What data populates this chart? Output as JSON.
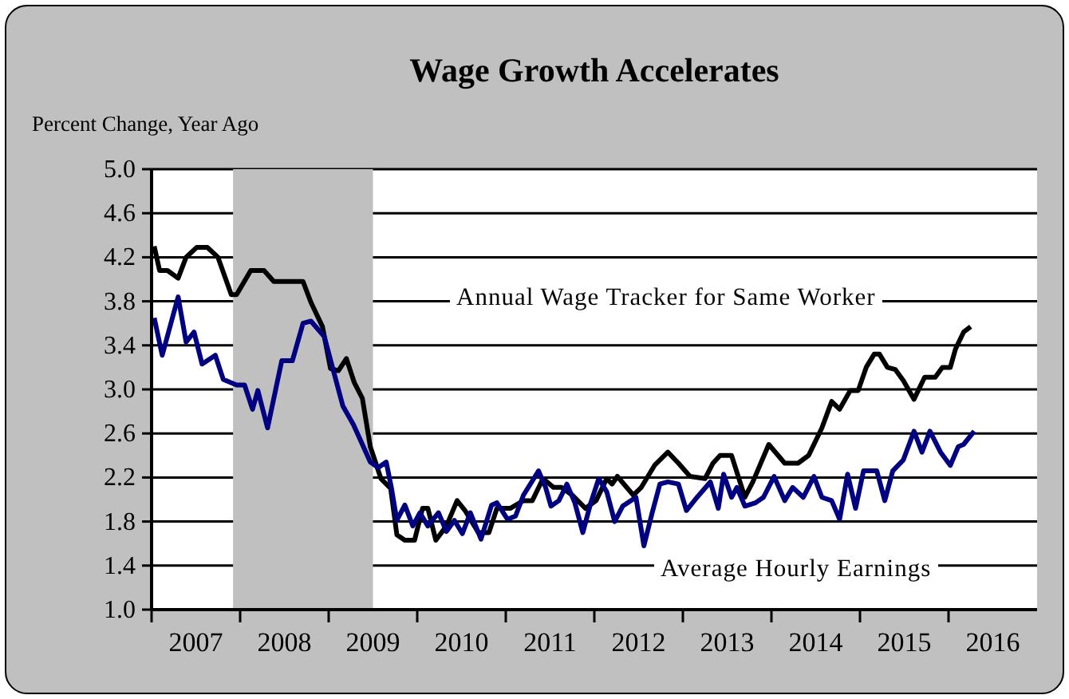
{
  "chart_data": {
    "type": "line",
    "title": "Wage Growth Accelerates",
    "ylabel": "Percent Change, Year Ago",
    "xlim": [
      2007,
      2017
    ],
    "xticks": [
      {
        "value": 2007,
        "label": null
      },
      {
        "value": 2008,
        "label": null
      },
      {
        "value": 2009,
        "label": null
      },
      {
        "value": 2010,
        "label": null
      },
      {
        "value": 2011,
        "label": null
      },
      {
        "value": 2012,
        "label": null
      },
      {
        "value": 2013,
        "label": null
      },
      {
        "value": 2014,
        "label": null
      },
      {
        "value": 2015,
        "label": null
      },
      {
        "value": 2016,
        "label": null
      },
      {
        "value": 2007.5,
        "label": "2007"
      },
      {
        "value": 2008.5,
        "label": "2008"
      },
      {
        "value": 2009.5,
        "label": "2009"
      },
      {
        "value": 2010.5,
        "label": "2010"
      },
      {
        "value": 2011.5,
        "label": "2011"
      },
      {
        "value": 2012.5,
        "label": "2012"
      },
      {
        "value": 2013.5,
        "label": "2013"
      },
      {
        "value": 2014.5,
        "label": "2014"
      },
      {
        "value": 2015.5,
        "label": "2015"
      },
      {
        "value": 2016.5,
        "label": "2016"
      }
    ],
    "ylim": [
      1,
      5
    ],
    "yticks": [
      {
        "value": 1,
        "label": "1.0"
      },
      {
        "value": 1.4,
        "label": "1.4"
      },
      {
        "value": 1.8,
        "label": "1.8"
      },
      {
        "value": 2.2,
        "label": "2.2"
      },
      {
        "value": 2.6,
        "label": "2.6"
      },
      {
        "value": 3,
        "label": "3.0"
      },
      {
        "value": 3.4,
        "label": "3.4"
      },
      {
        "value": 3.8,
        "label": "3.8"
      },
      {
        "value": 4.2,
        "label": "4.2"
      },
      {
        "value": 4.6,
        "label": "4.6"
      },
      {
        "value": 5,
        "label": "5.0"
      }
    ],
    "grid": "y",
    "marker": "none",
    "line_style": "solid",
    "bands": [
      {
        "axis": "x",
        "from": 2007.92,
        "to": 2009.5,
        "color": "#c0c0c0"
      }
    ],
    "series": [
      {
        "name": "Annual Wage Tracker for Same Worker",
        "color": "#000000",
        "x": [
          2007.03,
          2007.09,
          2007.18,
          2007.3,
          2007.39,
          2007.51,
          2007.63,
          2007.75,
          2007.9,
          2007.96,
          2008.12,
          2008.27,
          2008.38,
          2008.71,
          2008.8,
          2008.93,
          2009.02,
          2009.11,
          2009.2,
          2009.29,
          2009.38,
          2009.47,
          2009.59,
          2009.7,
          2009.77,
          2009.86,
          2009.97,
          2010.06,
          2010.12,
          2010.21,
          2010.33,
          2010.45,
          2010.54,
          2010.69,
          2010.81,
          2010.9,
          2011.05,
          2011.2,
          2011.3,
          2011.42,
          2011.54,
          2011.63,
          2011.75,
          2011.9,
          2012.02,
          2012.14,
          2012.2,
          2012.26,
          2012.44,
          2012.53,
          2012.68,
          2012.83,
          2012.95,
          2013.08,
          2013.25,
          2013.34,
          2013.42,
          2013.55,
          2013.7,
          2013.79,
          2013.97,
          2014.15,
          2014.3,
          2014.42,
          2014.57,
          2014.68,
          2014.77,
          2014.89,
          2014.98,
          2015.07,
          2015.16,
          2015.22,
          2015.31,
          2015.4,
          2015.49,
          2015.61,
          2015.73,
          2015.85,
          2015.93,
          2016.02,
          2016.08,
          2016.17,
          2016.25
        ],
        "values": [
          4.3,
          4.08,
          4.08,
          4.01,
          4.2,
          4.29,
          4.29,
          4.2,
          3.86,
          3.86,
          4.08,
          4.08,
          3.98,
          3.98,
          3.79,
          3.57,
          3.19,
          3.17,
          3.28,
          3.06,
          2.92,
          2.48,
          2.19,
          2.1,
          1.68,
          1.63,
          1.63,
          1.92,
          1.92,
          1.63,
          1.76,
          1.99,
          1.9,
          1.7,
          1.7,
          1.92,
          1.92,
          1.99,
          1.99,
          2.19,
          2.11,
          2.11,
          2.04,
          1.92,
          1.99,
          2.19,
          2.14,
          2.21,
          2.04,
          2.11,
          2.31,
          2.43,
          2.33,
          2.21,
          2.19,
          2.33,
          2.4,
          2.4,
          2.02,
          2.16,
          2.5,
          2.33,
          2.33,
          2.4,
          2.65,
          2.89,
          2.82,
          2.99,
          2.99,
          3.2,
          3.32,
          3.32,
          3.2,
          3.18,
          3.08,
          2.91,
          3.11,
          3.11,
          3.2,
          3.2,
          3.37,
          3.52,
          3.57
        ]
      },
      {
        "name": "Average Hourly Earnings",
        "color": "#000080",
        "x": [
          2007.03,
          2007.12,
          2007.3,
          2007.39,
          2007.48,
          2007.57,
          2007.72,
          2007.81,
          2007.96,
          2008.05,
          2008.14,
          2008.2,
          2008.31,
          2008.47,
          2008.59,
          2008.71,
          2008.8,
          2008.95,
          2009.04,
          2009.16,
          2009.28,
          2009.47,
          2009.56,
          2009.65,
          2009.71,
          2009.77,
          2009.86,
          2009.95,
          2010.03,
          2010.12,
          2010.24,
          2010.33,
          2010.42,
          2010.51,
          2010.6,
          2010.72,
          2010.84,
          2010.9,
          2011.02,
          2011.11,
          2011.2,
          2011.37,
          2011.45,
          2011.51,
          2011.6,
          2011.69,
          2011.78,
          2011.87,
          2011.96,
          2012.05,
          2012.14,
          2012.23,
          2012.32,
          2012.47,
          2012.56,
          2012.65,
          2012.74,
          2012.83,
          2012.95,
          2013.04,
          2013.16,
          2013.31,
          2013.4,
          2013.46,
          2013.55,
          2013.61,
          2013.7,
          2013.82,
          2013.91,
          2014.03,
          2014.15,
          2014.24,
          2014.36,
          2014.48,
          2014.57,
          2014.68,
          2014.77,
          2014.86,
          2014.95,
          2015.04,
          2015.19,
          2015.28,
          2015.37,
          2015.49,
          2015.61,
          2015.7,
          2015.79,
          2015.91,
          2016.02,
          2016.11,
          2016.17,
          2016.29
        ],
        "values": [
          3.65,
          3.31,
          3.84,
          3.43,
          3.52,
          3.23,
          3.31,
          3.09,
          3.04,
          3.04,
          2.82,
          2.99,
          2.65,
          3.26,
          3.26,
          3.6,
          3.62,
          3.48,
          3.21,
          2.85,
          2.68,
          2.34,
          2.29,
          2.34,
          2.1,
          1.81,
          1.95,
          1.76,
          1.88,
          1.76,
          1.88,
          1.71,
          1.81,
          1.69,
          1.88,
          1.64,
          1.95,
          1.97,
          1.82,
          1.85,
          2.04,
          2.26,
          2.11,
          1.94,
          1.99,
          2.14,
          1.97,
          1.7,
          1.97,
          2.19,
          2.07,
          1.8,
          1.94,
          2.02,
          1.58,
          1.87,
          2.14,
          2.16,
          2.14,
          1.9,
          2.02,
          2.16,
          1.92,
          2.23,
          2.02,
          2.11,
          1.94,
          1.97,
          2.02,
          2.21,
          1.99,
          2.11,
          2.02,
          2.21,
          2.02,
          1.99,
          1.82,
          2.23,
          1.92,
          2.26,
          2.26,
          1.99,
          2.26,
          2.36,
          2.62,
          2.43,
          2.62,
          2.43,
          2.31,
          2.48,
          2.5,
          2.62
        ]
      }
    ]
  }
}
